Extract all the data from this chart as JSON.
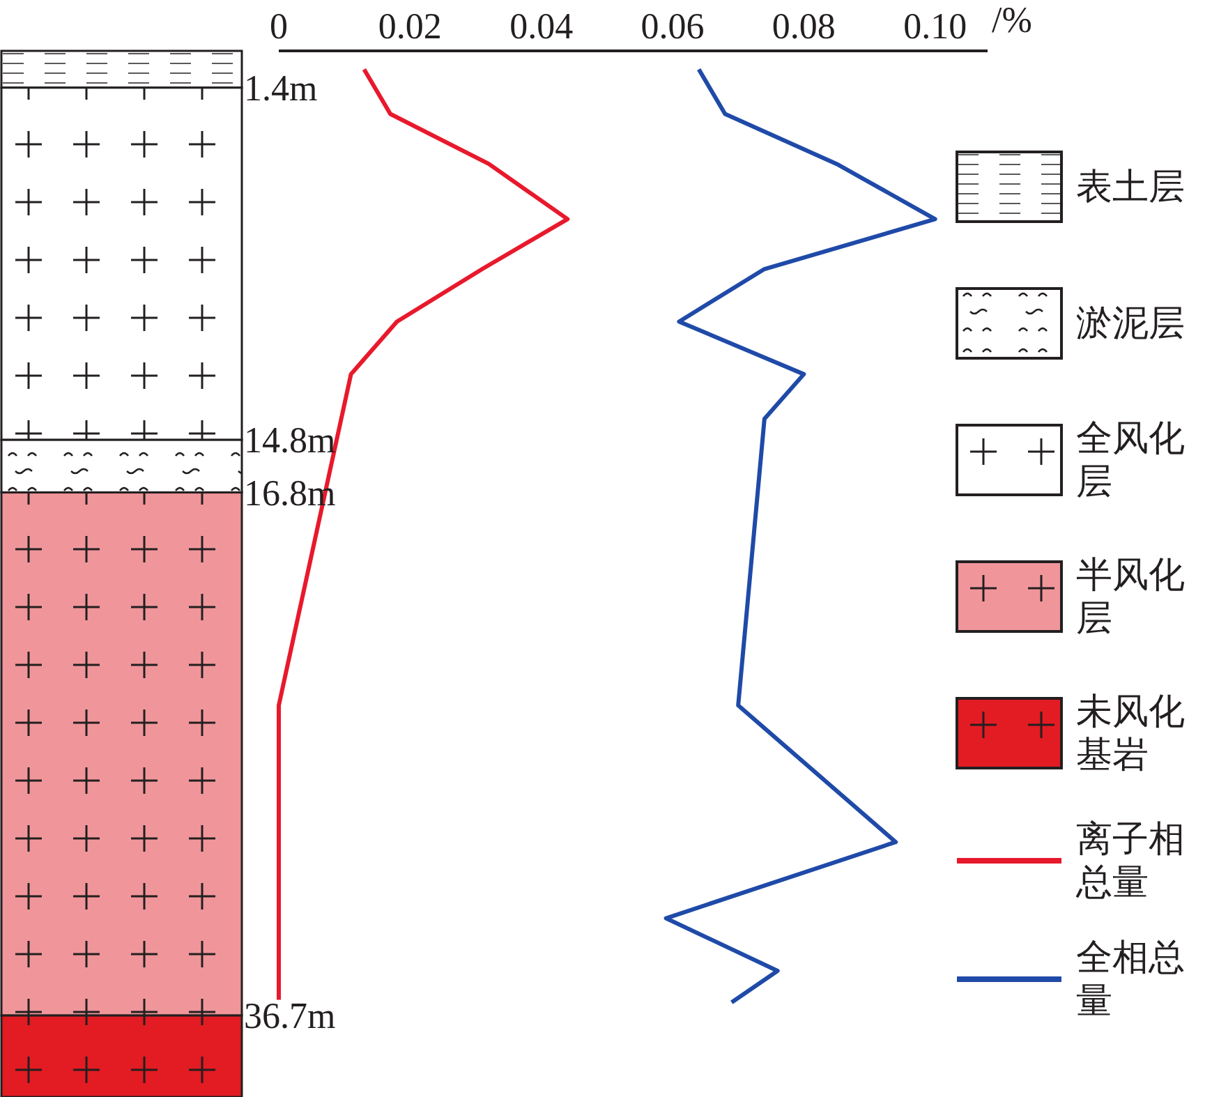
{
  "chart_data": {
    "type": "line",
    "orientation": "horizontal",
    "xlabel": "/%",
    "xlim": [
      0,
      0.108
    ],
    "xticks": [
      0,
      0.02,
      0.04,
      0.06,
      0.08,
      {
        "value": 0.1,
        "label": "0.10"
      }
    ],
    "ylim": [
      39.8,
      0
    ],
    "yticks": [
      {
        "value": 1.4,
        "label": "1.4m"
      },
      {
        "value": 14.8,
        "label": "14.8m"
      },
      {
        "value": 16.8,
        "label": "16.8m"
      },
      {
        "value": 36.7,
        "label": "36.7m"
      }
    ],
    "annotations": [
      "表土层",
      "淤泥层",
      "全风化层",
      "半风化层",
      "未风化基岩"
    ],
    "legend": "right",
    "series": [
      {
        "name": "离子相总量",
        "color": "#e8192c",
        "x": [
          0.7,
          2.4,
          4.3,
          6.4,
          8.3,
          10.3,
          12.3,
          24.9,
          36.1
        ],
        "values": [
          0.013,
          0.017,
          0.032,
          0.044,
          0.031,
          0.018,
          0.011,
          0,
          0
        ]
      },
      {
        "name": "全相总量",
        "color": "#1f4aa8",
        "x": [
          0.7,
          2.4,
          4.3,
          6.4,
          8.3,
          10.3,
          12.3,
          14.0,
          24.9,
          30.1,
          33.0,
          35.0,
          36.2
        ],
        "values": [
          0.064,
          0.068,
          0.085,
          0.1,
          0.074,
          0.061,
          0.08,
          0.074,
          0.07,
          0.094,
          0.059,
          0.076,
          0.069
        ]
      }
    ]
  }
}
